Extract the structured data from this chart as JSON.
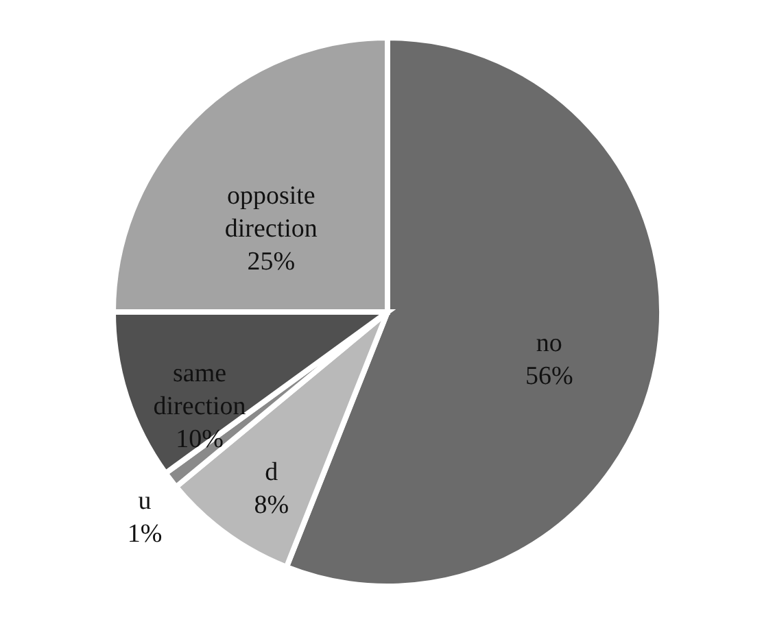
{
  "chart_data": {
    "type": "pie",
    "categories": [
      "no",
      "d",
      "u",
      "same direction",
      "opposite direction"
    ],
    "values": [
      56,
      8,
      1,
      10,
      25
    ],
    "value_labels": [
      "56%",
      "8%",
      "1%",
      "10%",
      "25%"
    ],
    "colors": [
      "#6b6b6b",
      "#b9b9b9",
      "#8a8a8a",
      "#505050",
      "#a3a3a3"
    ]
  }
}
